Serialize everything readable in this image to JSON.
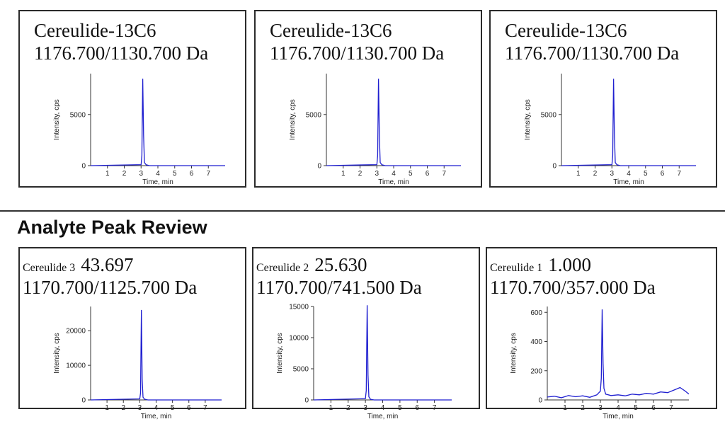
{
  "section_title": "Analyte Peak Review",
  "colors": {
    "trace": "#1f1fd0",
    "border": "#2b2b2b",
    "axis": "#333333"
  },
  "chart_data": [
    {
      "type": "line",
      "title": "Cereulide-13C6",
      "subtitle": "1176.700/1130.700 Da",
      "xlabel": "Time, min",
      "ylabel": "Intensity, cps",
      "xlim": [
        0,
        8
      ],
      "ylim": [
        0,
        9000
      ],
      "xticks": [
        1,
        2,
        3,
        4,
        5,
        6,
        7
      ],
      "yticks": [
        0,
        5000
      ],
      "series": [
        {
          "x": [
            0,
            3.0,
            3.05,
            3.1,
            3.15,
            3.2,
            3.3,
            3.5,
            8
          ],
          "values": [
            0,
            100,
            1000,
            8500,
            3000,
            300,
            80,
            0,
            0
          ]
        }
      ]
    },
    {
      "type": "line",
      "title": "Cereulide-13C6",
      "subtitle": "1176.700/1130.700 Da",
      "xlabel": "Time, min",
      "ylabel": "Intensity, cps",
      "xlim": [
        0,
        8
      ],
      "ylim": [
        0,
        9000
      ],
      "xticks": [
        1,
        2,
        3,
        4,
        5,
        6,
        7
      ],
      "yticks": [
        0,
        5000
      ],
      "series": [
        {
          "x": [
            0,
            3.0,
            3.05,
            3.1,
            3.15,
            3.2,
            3.3,
            3.5,
            8
          ],
          "values": [
            0,
            100,
            1000,
            8500,
            3000,
            300,
            80,
            0,
            0
          ]
        }
      ]
    },
    {
      "type": "line",
      "title": "Cereulide-13C6",
      "subtitle": "1176.700/1130.700 Da",
      "xlabel": "Time, min",
      "ylabel": "Intensity, cps",
      "xlim": [
        0,
        8
      ],
      "ylim": [
        0,
        9000
      ],
      "xticks": [
        1,
        2,
        3,
        4,
        5,
        6,
        7
      ],
      "yticks": [
        0,
        5000
      ],
      "series": [
        {
          "x": [
            0,
            3.0,
            3.05,
            3.1,
            3.15,
            3.2,
            3.3,
            3.5,
            8
          ],
          "values": [
            0,
            100,
            1000,
            8500,
            3000,
            300,
            80,
            0,
            0
          ]
        }
      ]
    },
    {
      "type": "line",
      "label": "Cereulide 3",
      "value": "43.697",
      "subtitle": "1170.700/1125.700 Da",
      "xlabel": "Time, min",
      "ylabel": "Intensity, cps",
      "xlim": [
        0,
        8
      ],
      "ylim": [
        0,
        27000
      ],
      "xticks": [
        1,
        2,
        3,
        4,
        5,
        6,
        7
      ],
      "yticks": [
        0,
        10000,
        20000
      ],
      "series": [
        {
          "x": [
            0,
            3.0,
            3.05,
            3.1,
            3.15,
            3.2,
            3.3,
            3.5,
            8
          ],
          "values": [
            0,
            300,
            2000,
            26000,
            6000,
            800,
            200,
            0,
            0
          ]
        }
      ]
    },
    {
      "type": "line",
      "label": "Cereulide 2",
      "value": "25.630",
      "subtitle": "1170.700/741.500 Da",
      "xlabel": "Time, min",
      "ylabel": "Intensity, cps",
      "xlim": [
        0,
        8
      ],
      "ylim": [
        0,
        15000
      ],
      "xticks": [
        1,
        2,
        3,
        4,
        5,
        6,
        7
      ],
      "yticks": [
        0,
        5000,
        10000,
        15000
      ],
      "series": [
        {
          "x": [
            0,
            3.0,
            3.05,
            3.1,
            3.15,
            3.2,
            3.3,
            3.5,
            8
          ],
          "values": [
            0,
            200,
            1500,
            15200,
            4000,
            500,
            100,
            0,
            0
          ]
        }
      ]
    },
    {
      "type": "line",
      "label": "Cereulide 1",
      "value": "1.000",
      "subtitle": "1170.700/357.000 Da",
      "xlabel": "Time, min",
      "ylabel": "Intensity, cps",
      "xlim": [
        0,
        8
      ],
      "ylim": [
        0,
        640
      ],
      "xticks": [
        1,
        2,
        3,
        4,
        5,
        6,
        7
      ],
      "yticks": [
        0,
        200,
        400,
        600
      ],
      "series": [
        {
          "x": [
            0,
            0.4,
            0.8,
            1.2,
            1.6,
            2.0,
            2.4,
            2.8,
            3.0,
            3.05,
            3.1,
            3.15,
            3.2,
            3.3,
            3.6,
            4.0,
            4.4,
            4.8,
            5.2,
            5.6,
            6.0,
            6.4,
            6.8,
            7.2,
            7.5,
            7.8,
            8
          ],
          "values": [
            20,
            25,
            15,
            30,
            22,
            28,
            18,
            35,
            60,
            150,
            620,
            250,
            80,
            40,
            30,
            35,
            28,
            40,
            35,
            45,
            40,
            55,
            50,
            70,
            85,
            60,
            40
          ]
        }
      ]
    }
  ]
}
